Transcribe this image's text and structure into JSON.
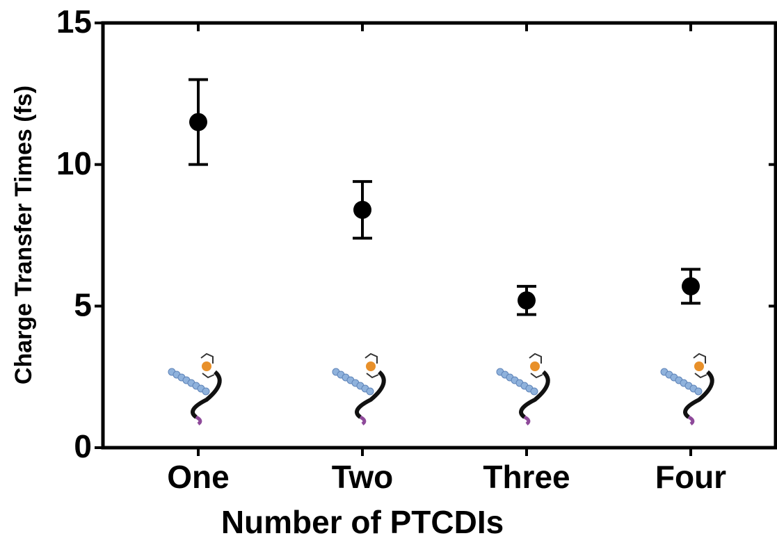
{
  "chart_data": {
    "type": "scatter",
    "x_label": "Number of PTCDIs",
    "y_label": "Charge Transfer Times (fs)",
    "categories": [
      "One",
      "Two",
      "Three",
      "Four"
    ],
    "values": [
      11.5,
      8.4,
      5.2,
      5.7
    ],
    "errors": [
      1.5,
      1.0,
      0.5,
      0.6
    ],
    "color": "#000000",
    "ylim": [
      0,
      15
    ],
    "yticks": [
      0,
      5,
      10,
      15
    ]
  }
}
